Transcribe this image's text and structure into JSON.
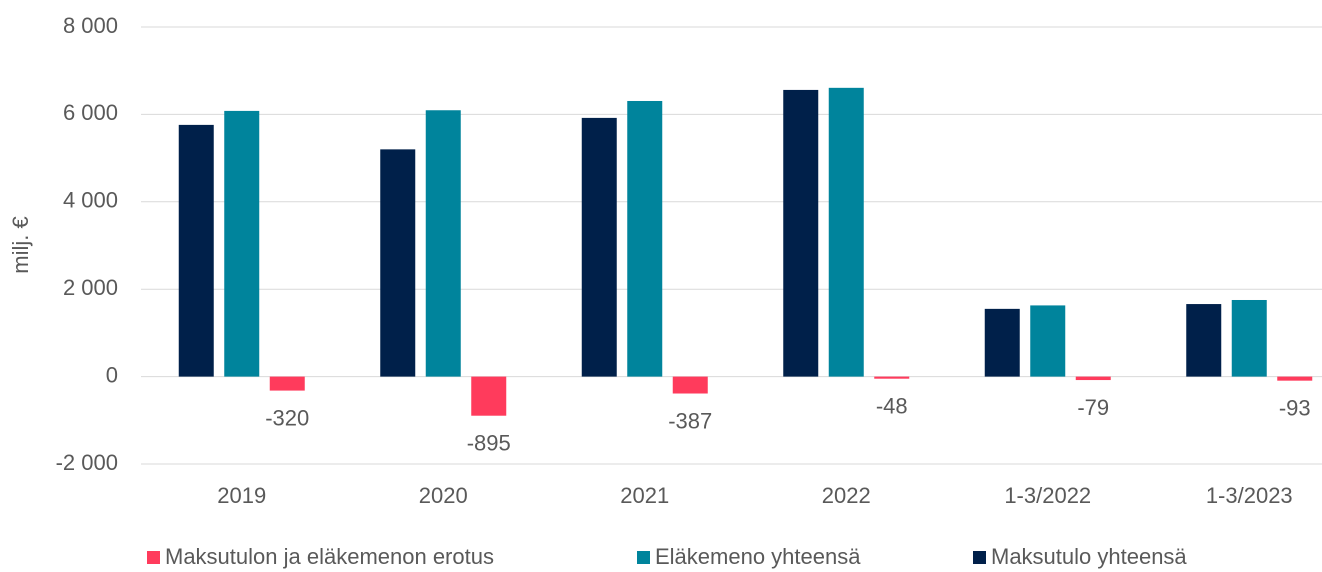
{
  "chart_data": {
    "type": "bar",
    "y_label": "milj. €",
    "categories": [
      "2019",
      "2020",
      "2021",
      "2022",
      "1-3/2022",
      "1-3/2023"
    ],
    "series": [
      {
        "name": "Maksutulon ja eläkemenon erotus",
        "color": "#ff3b5c",
        "values": [
          -320,
          -895,
          -387,
          -48,
          -79,
          -93
        ]
      },
      {
        "name": "Eläkemeno yhteensä",
        "color": "#00849c",
        "values": [
          6080,
          6095,
          6307,
          6608,
          1629,
          1753
        ]
      },
      {
        "name": "Maksutulo yhteensä",
        "color": "#00204a",
        "values": [
          5760,
          5200,
          5920,
          6560,
          1550,
          1660
        ]
      }
    ],
    "ylim": [
      -2000,
      8000
    ],
    "yticks": [
      {
        "value": -2000,
        "label": "-2 000"
      },
      0,
      {
        "value": 2000,
        "label": "2 000"
      },
      {
        "value": 4000,
        "label": "4 000"
      },
      {
        "value": 6000,
        "label": "6 000"
      },
      {
        "value": 8000,
        "label": "8 000"
      }
    ],
    "grid": true
  }
}
